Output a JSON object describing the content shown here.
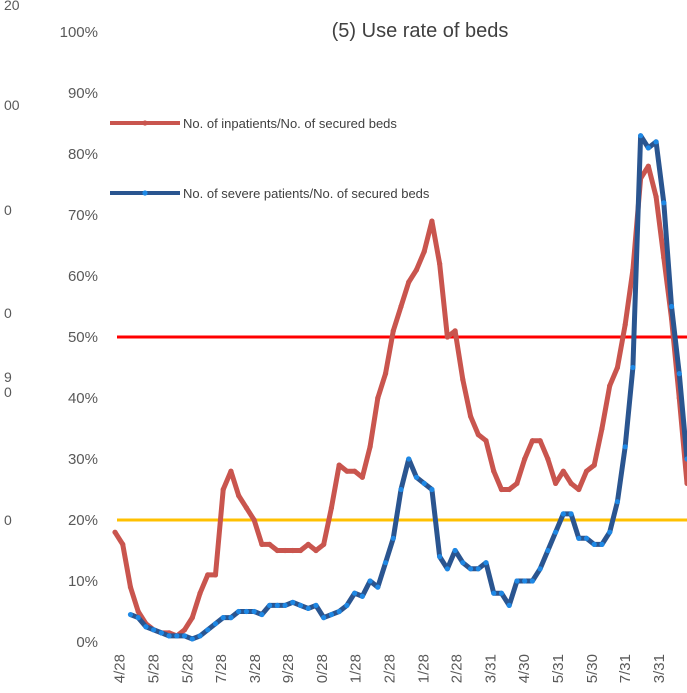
{
  "chart_data": {
    "type": "line",
    "title": "(5) Use rate of beds",
    "left_axis_fragments": [
      "20",
      "00",
      "0",
      "0",
      "9",
      "0",
      "0"
    ],
    "xlim": [
      0,
      74
    ],
    "xticks": [
      {
        "value": 0.6,
        "label": "4/28"
      },
      {
        "value": 5.0,
        "label": "5/28"
      },
      {
        "value": 9.4,
        "label": "5/28"
      },
      {
        "value": 13.7,
        "label": "7/28"
      },
      {
        "value": 18.1,
        "label": "3/28"
      },
      {
        "value": 22.4,
        "label": "9/28"
      },
      {
        "value": 26.8,
        "label": "0/28"
      },
      {
        "value": 31.1,
        "label": "1/28"
      },
      {
        "value": 35.5,
        "label": "2/28"
      },
      {
        "value": 39.9,
        "label": "1/28"
      },
      {
        "value": 44.2,
        "label": "2/28"
      },
      {
        "value": 48.6,
        "label": "3/31"
      },
      {
        "value": 52.9,
        "label": "4/30"
      },
      {
        "value": 57.3,
        "label": "5/31"
      },
      {
        "value": 61.7,
        "label": "5/30"
      },
      {
        "value": 66.0,
        "label": "7/31"
      },
      {
        "value": 70.4,
        "label": "3/31"
      }
    ],
    "ylim": [
      0,
      100
    ],
    "yticks": [
      {
        "value": 0,
        "label": "0%"
      },
      {
        "value": 10,
        "label": "10%"
      },
      {
        "value": 20,
        "label": "20%"
      },
      {
        "value": 30,
        "label": "30%"
      },
      {
        "value": 40,
        "label": "40%"
      },
      {
        "value": 50,
        "label": "50%"
      },
      {
        "value": 60,
        "label": "60%"
      },
      {
        "value": 70,
        "label": "70%"
      },
      {
        "value": 80,
        "label": "80%"
      },
      {
        "value": 90,
        "label": "90%"
      },
      {
        "value": 100,
        "label": "100%"
      }
    ],
    "reference_lines": [
      {
        "value": 50,
        "color": "#ff0000"
      },
      {
        "value": 20,
        "color": "#ffc000"
      }
    ],
    "series": [
      {
        "name": "No. of inpatients/No. of secured beds",
        "color": "#c9554e",
        "marker_color": "#c9554e",
        "values": [
          18,
          16,
          9,
          5,
          3,
          2,
          1.5,
          1.5,
          1,
          2,
          4,
          8,
          11,
          11,
          25,
          28,
          24,
          22,
          20,
          16,
          16,
          15,
          15,
          15,
          15,
          16,
          15,
          16,
          22,
          29,
          28,
          28,
          27,
          32,
          40,
          44,
          51,
          55,
          59,
          61,
          64,
          69,
          62,
          50,
          51,
          43,
          37,
          34,
          33,
          28,
          25,
          25,
          26,
          30,
          33,
          33,
          30,
          26,
          28,
          26,
          25,
          28,
          29,
          35,
          42,
          45,
          52,
          61,
          76,
          78,
          73,
          63,
          53,
          40,
          26
        ]
      },
      {
        "name": "No. of severe patients/No. of secured beds",
        "color": "#2a5590",
        "marker_color": "#1e88e5",
        "values": [
          null,
          null,
          4.5,
          4,
          2.5,
          2,
          1.5,
          1,
          1,
          1,
          0.5,
          1,
          2,
          3,
          4,
          4,
          5,
          5,
          5,
          4.5,
          6,
          6,
          6,
          6.5,
          6,
          5.5,
          6,
          4,
          4.5,
          5,
          6,
          8,
          7.5,
          10,
          9,
          13,
          17,
          25,
          30,
          27,
          26,
          25,
          14,
          12,
          15,
          13,
          12,
          12,
          13,
          8,
          8,
          6,
          10,
          10,
          10,
          12,
          15,
          18,
          21,
          21,
          17,
          17,
          16,
          16,
          18,
          23,
          32,
          45,
          83,
          81,
          82,
          72,
          55,
          44,
          30
        ]
      }
    ]
  }
}
